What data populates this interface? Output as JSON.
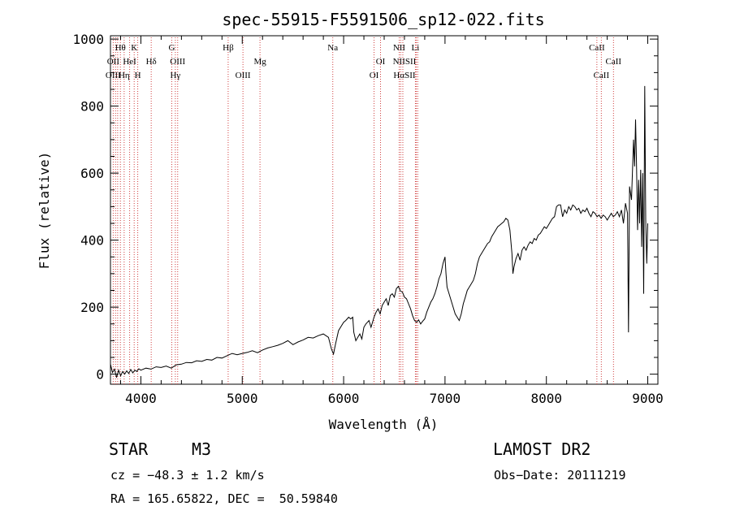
{
  "chart_data": {
    "type": "line",
    "title": "spec-55915-F5591506_sp12-022.fits",
    "xlabel": "Wavelength (Å)",
    "ylabel": "Flux (relative)",
    "xlim": [
      3700,
      9100
    ],
    "ylim": [
      -30,
      1010
    ],
    "xticks": [
      4000,
      5000,
      6000,
      7000,
      8000,
      9000
    ],
    "yticks": [
      0,
      200,
      400,
      600,
      800,
      1000
    ],
    "grid": false,
    "series": [
      {
        "values": [
          [
            3700,
            30
          ],
          [
            3720,
            5
          ],
          [
            3740,
            15
          ],
          [
            3760,
            -10
          ],
          [
            3780,
            12
          ],
          [
            3800,
            -5
          ],
          [
            3820,
            8
          ],
          [
            3840,
            0
          ],
          [
            3860,
            10
          ],
          [
            3880,
            2
          ],
          [
            3900,
            14
          ],
          [
            3920,
            4
          ],
          [
            3940,
            12
          ],
          [
            3960,
            8
          ],
          [
            3980,
            16
          ],
          [
            4000,
            12
          ],
          [
            4050,
            18
          ],
          [
            4100,
            15
          ],
          [
            4150,
            22
          ],
          [
            4200,
            20
          ],
          [
            4250,
            24
          ],
          [
            4300,
            18
          ],
          [
            4350,
            28
          ],
          [
            4400,
            30
          ],
          [
            4450,
            35
          ],
          [
            4500,
            34
          ],
          [
            4550,
            40
          ],
          [
            4600,
            38
          ],
          [
            4650,
            44
          ],
          [
            4700,
            42
          ],
          [
            4750,
            50
          ],
          [
            4800,
            48
          ],
          [
            4850,
            55
          ],
          [
            4900,
            62
          ],
          [
            4950,
            58
          ],
          [
            5000,
            62
          ],
          [
            5050,
            65
          ],
          [
            5100,
            70
          ],
          [
            5150,
            64
          ],
          [
            5200,
            72
          ],
          [
            5250,
            78
          ],
          [
            5300,
            82
          ],
          [
            5350,
            86
          ],
          [
            5400,
            92
          ],
          [
            5450,
            100
          ],
          [
            5500,
            88
          ],
          [
            5550,
            96
          ],
          [
            5600,
            102
          ],
          [
            5650,
            110
          ],
          [
            5700,
            108
          ],
          [
            5750,
            115
          ],
          [
            5800,
            120
          ],
          [
            5850,
            110
          ],
          [
            5880,
            75
          ],
          [
            5900,
            60
          ],
          [
            5920,
            90
          ],
          [
            5950,
            130
          ],
          [
            5980,
            145
          ],
          [
            6000,
            155
          ],
          [
            6020,
            160
          ],
          [
            6050,
            170
          ],
          [
            6070,
            165
          ],
          [
            6090,
            170
          ],
          [
            6100,
            125
          ],
          [
            6120,
            100
          ],
          [
            6140,
            110
          ],
          [
            6160,
            120
          ],
          [
            6180,
            105
          ],
          [
            6200,
            140
          ],
          [
            6220,
            150
          ],
          [
            6250,
            160
          ],
          [
            6270,
            140
          ],
          [
            6300,
            170
          ],
          [
            6320,
            185
          ],
          [
            6340,
            195
          ],
          [
            6360,
            180
          ],
          [
            6380,
            205
          ],
          [
            6400,
            215
          ],
          [
            6420,
            225
          ],
          [
            6440,
            205
          ],
          [
            6460,
            235
          ],
          [
            6480,
            240
          ],
          [
            6500,
            230
          ],
          [
            6520,
            255
          ],
          [
            6540,
            262
          ],
          [
            6560,
            248
          ],
          [
            6580,
            245
          ],
          [
            6600,
            230
          ],
          [
            6620,
            225
          ],
          [
            6640,
            210
          ],
          [
            6660,
            195
          ],
          [
            6680,
            175
          ],
          [
            6700,
            160
          ],
          [
            6720,
            155
          ],
          [
            6740,
            162
          ],
          [
            6760,
            150
          ],
          [
            6780,
            158
          ],
          [
            6800,
            165
          ],
          [
            6820,
            185
          ],
          [
            6840,
            200
          ],
          [
            6860,
            215
          ],
          [
            6880,
            225
          ],
          [
            6900,
            240
          ],
          [
            6920,
            260
          ],
          [
            6940,
            285
          ],
          [
            6960,
            300
          ],
          [
            6980,
            330
          ],
          [
            7000,
            350
          ],
          [
            7010,
            300
          ],
          [
            7020,
            260
          ],
          [
            7040,
            240
          ],
          [
            7060,
            220
          ],
          [
            7080,
            200
          ],
          [
            7100,
            180
          ],
          [
            7120,
            170
          ],
          [
            7140,
            160
          ],
          [
            7160,
            180
          ],
          [
            7180,
            210
          ],
          [
            7200,
            230
          ],
          [
            7220,
            250
          ],
          [
            7240,
            260
          ],
          [
            7260,
            270
          ],
          [
            7280,
            280
          ],
          [
            7300,
            300
          ],
          [
            7320,
            330
          ],
          [
            7340,
            350
          ],
          [
            7360,
            360
          ],
          [
            7380,
            370
          ],
          [
            7400,
            380
          ],
          [
            7420,
            390
          ],
          [
            7440,
            395
          ],
          [
            7460,
            410
          ],
          [
            7480,
            420
          ],
          [
            7500,
            430
          ],
          [
            7520,
            440
          ],
          [
            7540,
            445
          ],
          [
            7560,
            450
          ],
          [
            7580,
            455
          ],
          [
            7600,
            465
          ],
          [
            7620,
            460
          ],
          [
            7640,
            430
          ],
          [
            7660,
            360
          ],
          [
            7670,
            300
          ],
          [
            7680,
            320
          ],
          [
            7700,
            345
          ],
          [
            7720,
            360
          ],
          [
            7740,
            340
          ],
          [
            7760,
            370
          ],
          [
            7780,
            380
          ],
          [
            7800,
            370
          ],
          [
            7820,
            385
          ],
          [
            7840,
            395
          ],
          [
            7860,
            390
          ],
          [
            7880,
            405
          ],
          [
            7900,
            400
          ],
          [
            7920,
            415
          ],
          [
            7940,
            420
          ],
          [
            7960,
            430
          ],
          [
            7980,
            440
          ],
          [
            8000,
            435
          ],
          [
            8020,
            445
          ],
          [
            8040,
            455
          ],
          [
            8060,
            465
          ],
          [
            8080,
            470
          ],
          [
            8100,
            500
          ],
          [
            8120,
            505
          ],
          [
            8140,
            505
          ],
          [
            8160,
            470
          ],
          [
            8180,
            490
          ],
          [
            8200,
            480
          ],
          [
            8220,
            500
          ],
          [
            8240,
            490
          ],
          [
            8260,
            505
          ],
          [
            8280,
            500
          ],
          [
            8300,
            490
          ],
          [
            8320,
            495
          ],
          [
            8340,
            480
          ],
          [
            8360,
            490
          ],
          [
            8380,
            485
          ],
          [
            8400,
            495
          ],
          [
            8420,
            480
          ],
          [
            8440,
            470
          ],
          [
            8460,
            485
          ],
          [
            8480,
            480
          ],
          [
            8500,
            470
          ],
          [
            8520,
            475
          ],
          [
            8540,
            465
          ],
          [
            8560,
            475
          ],
          [
            8580,
            470
          ],
          [
            8600,
            460
          ],
          [
            8620,
            470
          ],
          [
            8640,
            480
          ],
          [
            8660,
            470
          ],
          [
            8680,
            475
          ],
          [
            8700,
            485
          ],
          [
            8720,
            470
          ],
          [
            8740,
            490
          ],
          [
            8760,
            450
          ],
          [
            8780,
            510
          ],
          [
            8800,
            480
          ],
          [
            8810,
            125
          ],
          [
            8820,
            560
          ],
          [
            8840,
            520
          ],
          [
            8860,
            700
          ],
          [
            8870,
            620
          ],
          [
            8880,
            760
          ],
          [
            8890,
            610
          ],
          [
            8900,
            430
          ],
          [
            8910,
            580
          ],
          [
            8920,
            450
          ],
          [
            8930,
            610
          ],
          [
            8940,
            380
          ],
          [
            8950,
            600
          ],
          [
            8960,
            240
          ],
          [
            8970,
            860
          ],
          [
            8980,
            460
          ],
          [
            8990,
            330
          ],
          [
            9000,
            450
          ]
        ]
      }
    ],
    "line_markers": [
      {
        "label": "Hθ",
        "wavelength": 3798,
        "row": 0
      },
      {
        "label": "K",
        "wavelength": 3934,
        "row": 0
      },
      {
        "label": "OII",
        "wavelength": 3727,
        "row": 1
      },
      {
        "label": "HeI",
        "wavelength": 3889,
        "row": 1
      },
      {
        "label": "Hδ",
        "wavelength": 4102,
        "row": 1
      },
      {
        "label": "OIII",
        "wavelength": 3727,
        "row": 2
      },
      {
        "label": "Hη",
        "wavelength": 3835,
        "row": 2
      },
      {
        "label": "H",
        "wavelength": 3969,
        "row": 2
      },
      {
        "label": "G",
        "wavelength": 4305,
        "row": 0
      },
      {
        "label": "OIII",
        "wavelength": 4363,
        "row": 1
      },
      {
        "label": "Hγ",
        "wavelength": 4340,
        "row": 2
      },
      {
        "label": "Hβ",
        "wavelength": 4861,
        "row": 0
      },
      {
        "label": "Mg",
        "wavelength": 5175,
        "row": 1
      },
      {
        "label": "OIII",
        "wavelength": 5007,
        "row": 2
      },
      {
        "label": "Na",
        "wavelength": 5893,
        "row": 0
      },
      {
        "label": "OI",
        "wavelength": 6364,
        "row": 1
      },
      {
        "label": "OI",
        "wavelength": 6300,
        "row": 2
      },
      {
        "label": "NII",
        "wavelength": 6548,
        "row": 0
      },
      {
        "label": "Li",
        "wavelength": 6708,
        "row": 0
      },
      {
        "label": "NIISII",
        "wavelength": 6600,
        "row": 1
      },
      {
        "label": "HαSII",
        "wavelength": 6600,
        "row": 2
      },
      {
        "label": "CaII",
        "wavelength": 8498,
        "row": 0
      },
      {
        "label": "CaII",
        "wavelength": 8662,
        "row": 1
      },
      {
        "label": "CaII",
        "wavelength": 8542,
        "row": 2
      }
    ],
    "marker_lines": [
      3727,
      3750,
      3771,
      3798,
      3835,
      3889,
      3934,
      3969,
      4102,
      4305,
      4340,
      4363,
      4861,
      5007,
      5175,
      5893,
      6300,
      6364,
      6548,
      6563,
      6584,
      6708,
      6717,
      6731,
      8498,
      8542,
      8662
    ],
    "colors": {
      "spectrum": "#000000",
      "markers": "#d04040"
    }
  },
  "info": {
    "object_class": "STAR",
    "subclass": "M3",
    "survey": "LAMOST DR2",
    "redshift": "cz = −48.3 ± 1.2 km/s",
    "obs_date": "Obs−Date: 20111219",
    "coords": "RA = 165.65822, DEC =  50.59840"
  }
}
